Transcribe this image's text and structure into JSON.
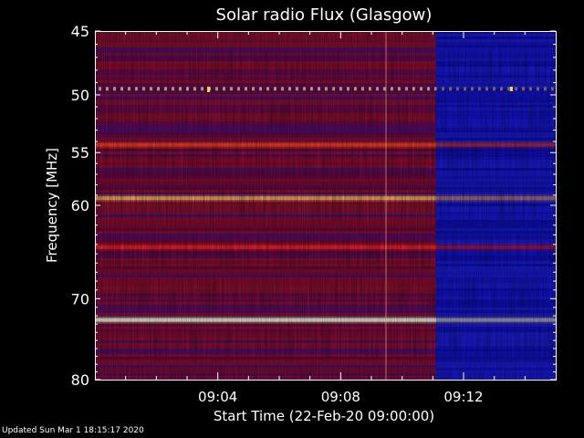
{
  "chart_data": {
    "type": "heatmap",
    "title": "Solar radio Flux (Glasgow)",
    "ylabel": "Frequency [MHz]",
    "xlabel": "Start Time (22-Feb-20 09:00:00)",
    "x_unit": "minutes after 09:00",
    "xlim": [
      0,
      15
    ],
    "ylim": [
      45,
      80
    ],
    "y_scale": "log",
    "y_ticks": [
      45,
      50,
      55,
      60,
      70,
      80
    ],
    "x_ticks": [
      {
        "value": 4,
        "label": "09:04"
      },
      {
        "value": 8,
        "label": "09:08"
      },
      {
        "value": 12,
        "label": "09:12"
      }
    ],
    "colormap": "blue-red-yellow-white",
    "segments": [
      {
        "start": 0,
        "end": 11.1,
        "level": "high"
      },
      {
        "start": 11.1,
        "end": 15,
        "level": "low"
      }
    ],
    "emission_lines": [
      {
        "freq": 49.5,
        "color": "#ffd070",
        "dotted": true
      },
      {
        "freq": 54.3,
        "color": "#ff4020"
      },
      {
        "freq": 59.3,
        "color": "#ffb060"
      },
      {
        "freq": 64.3,
        "color": "#ff2020"
      },
      {
        "freq": 72.5,
        "color": "#ffffd0"
      }
    ]
  },
  "colors": {
    "background": "#000000",
    "frame": "#ffffff",
    "red_base": "#7a0a3a",
    "blue_base": "#2020f0"
  },
  "footer": {
    "updated": "Updated Sun Mar  1 18:15:17 2020"
  }
}
